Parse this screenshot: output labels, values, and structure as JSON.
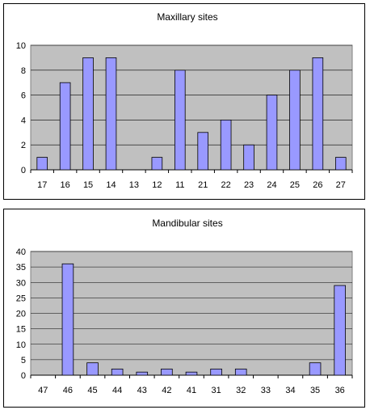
{
  "chart_data": [
    {
      "type": "bar",
      "title": "Maxillary sites",
      "categories": [
        "17",
        "16",
        "15",
        "14",
        "13",
        "12",
        "11",
        "21",
        "22",
        "23",
        "24",
        "25",
        "26",
        "27"
      ],
      "values": [
        1,
        7,
        9,
        9,
        0,
        1,
        8,
        3,
        4,
        2,
        6,
        8,
        9,
        1
      ],
      "ylim": [
        0,
        10
      ],
      "yticks": [
        0,
        2,
        4,
        6,
        8,
        10
      ],
      "grid": true,
      "colors": {
        "bar": "#9999ff",
        "plot_background": "#c0c0c0"
      }
    },
    {
      "type": "bar",
      "title": "Mandibular sites",
      "categories": [
        "47",
        "46",
        "45",
        "44",
        "43",
        "42",
        "41",
        "31",
        "32",
        "33",
        "34",
        "35",
        "36"
      ],
      "values": [
        0,
        36,
        4,
        2,
        1,
        2,
        1,
        2,
        2,
        0,
        0,
        4,
        29
      ],
      "ylim": [
        0,
        40
      ],
      "yticks": [
        0,
        5,
        10,
        15,
        20,
        25,
        30,
        35,
        40
      ],
      "grid": true,
      "colors": {
        "bar": "#9999ff",
        "plot_background": "#c0c0c0"
      }
    }
  ]
}
